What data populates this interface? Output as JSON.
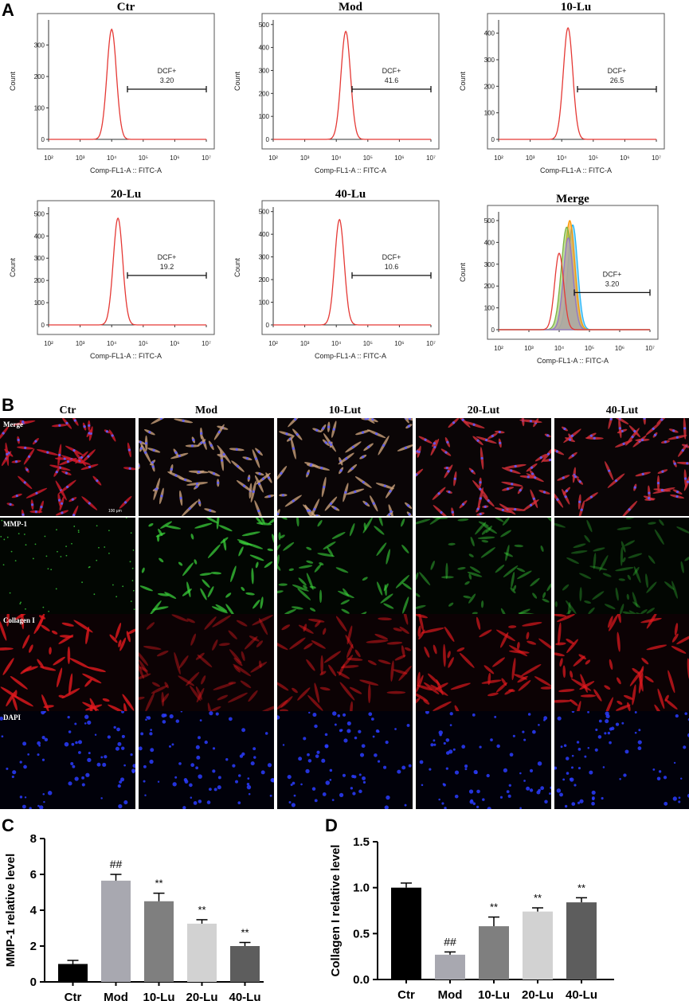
{
  "panels": {
    "a_letter": "A",
    "b_letter": "B",
    "c_letter": "C",
    "d_letter": "D"
  },
  "flow": {
    "xlabel": "Comp-FL1-A :: FITC-A",
    "ylabel": "Count",
    "gate_label": "DCF+",
    "x_ticks": [
      "10²",
      "10³",
      "10⁴",
      "10⁵",
      "10⁶",
      "10⁷"
    ],
    "plots": [
      {
        "title": "Ctr",
        "gate_value": "3.20",
        "y_ticks": [
          "0",
          "100",
          "200",
          "300"
        ],
        "ymax": 380
      },
      {
        "title": "Mod",
        "gate_value": "41.6",
        "y_ticks": [
          "0",
          "100",
          "200",
          "300",
          "400",
          "500"
        ],
        "ymax": 520
      },
      {
        "title": "10-Lu",
        "gate_value": "26.5",
        "y_ticks": [
          "0",
          "100",
          "200",
          "300",
          "400"
        ],
        "ymax": 450
      },
      {
        "title": "20-Lu",
        "gate_value": "19.2",
        "y_ticks": [
          "0",
          "100",
          "200",
          "300",
          "400",
          "500"
        ],
        "ymax": 530
      },
      {
        "title": "40-Lu",
        "gate_value": "10.6",
        "y_ticks": [
          "0",
          "100",
          "200",
          "300",
          "400",
          "500"
        ],
        "ymax": 520
      },
      {
        "title": "Merge",
        "gate_value": "3.20",
        "y_ticks": [
          "0",
          "100",
          "200",
          "300",
          "400",
          "500"
        ],
        "ymax": 540
      }
    ]
  },
  "microscopy": {
    "columns": [
      "Ctr",
      "Mod",
      "10-Lut",
      "20-Lut",
      "40-Lut"
    ],
    "rows": [
      "Merge",
      "MMP-1",
      "Collagen I",
      "DAPI"
    ],
    "scale_bar": "100 μm"
  },
  "chart_data": [
    {
      "type": "bar",
      "panel": "C",
      "categories": [
        "Ctr",
        "Mod",
        "10-Lu",
        "20-Lu",
        "40-Lu"
      ],
      "values": [
        1.0,
        5.65,
        4.5,
        3.25,
        2.0
      ],
      "errors": [
        0.2,
        0.35,
        0.45,
        0.22,
        0.2
      ],
      "annotations": [
        "",
        "##",
        "**",
        "**",
        "**"
      ],
      "colors": [
        "#000000",
        "#a8a8b0",
        "#7f7f7f",
        "#d2d2d2",
        "#5d5d5d"
      ],
      "ylabel": "MMP-1 relative level",
      "ylim": [
        0,
        8
      ],
      "yticks": [
        "0",
        "2",
        "4",
        "6",
        "8"
      ]
    },
    {
      "type": "bar",
      "panel": "D",
      "categories": [
        "Ctr",
        "Mod",
        "10-Lu",
        "20-Lu",
        "40-Lu"
      ],
      "values": [
        1.0,
        0.27,
        0.58,
        0.74,
        0.84
      ],
      "errors": [
        0.05,
        0.03,
        0.1,
        0.04,
        0.05
      ],
      "annotations": [
        "",
        "##",
        "**",
        "**",
        "**"
      ],
      "colors": [
        "#000000",
        "#a8a8b0",
        "#7f7f7f",
        "#d2d2d2",
        "#5d5d5d"
      ],
      "ylabel": "Collagen I relative level",
      "ylim": [
        0,
        1.5
      ],
      "yticks": [
        "0.0",
        "0.5",
        "1.0",
        "1.5"
      ]
    }
  ]
}
